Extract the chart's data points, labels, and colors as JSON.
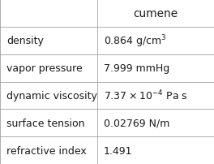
{
  "title": "cumene",
  "rows": [
    {
      "property": "density",
      "value_plain": "0.864 g/cm",
      "value_sup": "3",
      "value_rest": "",
      "type": "sup"
    },
    {
      "property": "vapor pressure",
      "value_plain": "7.999 mmHg",
      "value_sup": "",
      "value_rest": "",
      "type": "plain"
    },
    {
      "property": "dynamic viscosity",
      "value_plain": "7.37",
      "value_sup": "-4",
      "value_rest": " Pa s",
      "type": "sci"
    },
    {
      "property": "surface tension",
      "value_plain": "0.02769 N/m",
      "value_sup": "",
      "value_rest": "",
      "type": "plain"
    },
    {
      "property": "refractive index",
      "value_plain": "1.491",
      "value_sup": "",
      "value_rest": "",
      "type": "plain"
    }
  ],
  "line_color": "#a0a0a0",
  "text_color": "#1a1a1a",
  "bg_color": "#ffffff",
  "col_split": 0.455,
  "header_fontsize": 9.8,
  "cell_fontsize": 9.0,
  "prop_fontsize": 9.0
}
